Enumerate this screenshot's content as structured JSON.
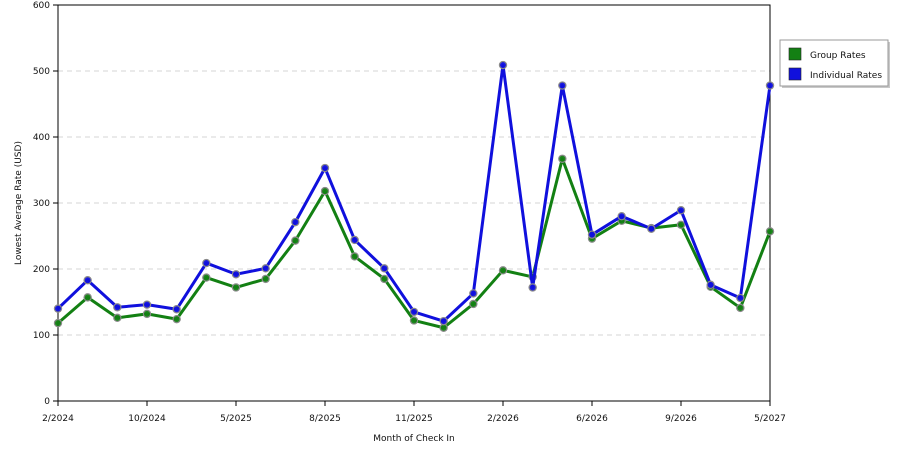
{
  "chart_data": {
    "type": "line",
    "title": "",
    "xlabel": "Month of Check In",
    "ylabel": "Lowest Average Rate (USD)",
    "ylim": [
      0,
      600
    ],
    "yticks": [
      0,
      100,
      200,
      300,
      400,
      500,
      600
    ],
    "grid": {
      "y": true,
      "style": "dashed"
    },
    "legend_position": "top-right",
    "x_tick_labels": [
      {
        "index": 0,
        "label": "2/2024"
      },
      {
        "index": 3,
        "label": "10/2024"
      },
      {
        "index": 6,
        "label": "5/2025"
      },
      {
        "index": 9,
        "label": "8/2025"
      },
      {
        "index": 12,
        "label": "11/2025"
      },
      {
        "index": 15,
        "label": "2/2026"
      },
      {
        "index": 18,
        "label": "6/2026"
      },
      {
        "index": 21,
        "label": "9/2026"
      },
      {
        "index": 24,
        "label": "5/2027"
      }
    ],
    "point_count": 25,
    "series": [
      {
        "name": "Group Rates",
        "color": "#138013",
        "values": [
          118,
          157,
          126,
          132,
          124,
          187,
          172,
          185,
          243,
          318,
          219,
          185,
          122,
          111,
          147,
          198,
          188,
          367,
          246,
          273,
          262,
          267,
          173,
          141,
          257
        ]
      },
      {
        "name": "Individual Rates",
        "color": "#1010dd",
        "values": [
          140,
          183,
          142,
          146,
          139,
          209,
          192,
          201,
          271,
          353,
          244,
          201,
          135,
          121,
          163,
          509,
          172,
          478,
          252,
          280,
          261,
          289,
          176,
          156,
          478
        ]
      }
    ]
  }
}
